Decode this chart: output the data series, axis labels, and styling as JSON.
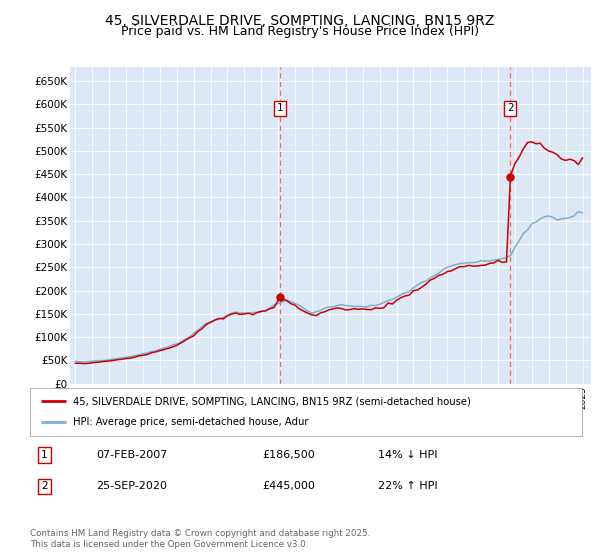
{
  "title": "45, SILVERDALE DRIVE, SOMPTING, LANCING, BN15 9RZ",
  "subtitle": "Price paid vs. HM Land Registry's House Price Index (HPI)",
  "title_fontsize": 10,
  "subtitle_fontsize": 9,
  "fig_bg_color": "#ffffff",
  "plot_bg_color": "#dce8f5",
  "legend1_label": "45, SILVERDALE DRIVE, SOMPTING, LANCING, BN15 9RZ (semi-detached house)",
  "legend2_label": "HPI: Average price, semi-detached house, Adur",
  "footer": "Contains HM Land Registry data © Crown copyright and database right 2025.\nThis data is licensed under the Open Government Licence v3.0.",
  "sale1_date": "07-FEB-2007",
  "sale1_price": "£186,500",
  "sale1_hpi": "14% ↓ HPI",
  "sale2_date": "25-SEP-2020",
  "sale2_price": "£445,000",
  "sale2_hpi": "22% ↑ HPI",
  "red_line_color": "#cc0000",
  "blue_line_color": "#7ab0d4",
  "vline_color": "#ff6666",
  "ylim": [
    0,
    680000
  ],
  "yticks": [
    0,
    50000,
    100000,
    150000,
    200000,
    250000,
    300000,
    350000,
    400000,
    450000,
    500000,
    550000,
    600000,
    650000
  ],
  "sale1_year": 2007.1,
  "sale2_year": 2020.73,
  "sale1_price_val": 186500,
  "sale2_price_val": 445000,
  "hpi_data": [
    [
      1995.0,
      47500
    ],
    [
      1995.25,
      47200
    ],
    [
      1995.5,
      47000
    ],
    [
      1995.75,
      47300
    ],
    [
      1996.0,
      48500
    ],
    [
      1996.25,
      49000
    ],
    [
      1996.5,
      49500
    ],
    [
      1996.75,
      50000
    ],
    [
      1997.0,
      51000
    ],
    [
      1997.25,
      52500
    ],
    [
      1997.5,
      54000
    ],
    [
      1997.75,
      55000
    ],
    [
      1998.0,
      56500
    ],
    [
      1998.25,
      58000
    ],
    [
      1998.5,
      60000
    ],
    [
      1998.75,
      62000
    ],
    [
      1999.0,
      64000
    ],
    [
      1999.25,
      66000
    ],
    [
      1999.5,
      68500
    ],
    [
      1999.75,
      71000
    ],
    [
      2000.0,
      73000
    ],
    [
      2000.25,
      76000
    ],
    [
      2000.5,
      79000
    ],
    [
      2000.75,
      82000
    ],
    [
      2001.0,
      85000
    ],
    [
      2001.25,
      90000
    ],
    [
      2001.5,
      96000
    ],
    [
      2001.75,
      101000
    ],
    [
      2002.0,
      107000
    ],
    [
      2002.25,
      115000
    ],
    [
      2002.5,
      123000
    ],
    [
      2002.75,
      129000
    ],
    [
      2003.0,
      133000
    ],
    [
      2003.25,
      137000
    ],
    [
      2003.5,
      140000
    ],
    [
      2003.75,
      143000
    ],
    [
      2004.0,
      147000
    ],
    [
      2004.25,
      150000
    ],
    [
      2004.5,
      152000
    ],
    [
      2004.75,
      152000
    ],
    [
      2005.0,
      151000
    ],
    [
      2005.25,
      151000
    ],
    [
      2005.5,
      152000
    ],
    [
      2005.75,
      154000
    ],
    [
      2006.0,
      156000
    ],
    [
      2006.25,
      159000
    ],
    [
      2006.5,
      162000
    ],
    [
      2006.75,
      167000
    ],
    [
      2007.0,
      172000
    ],
    [
      2007.25,
      176000
    ],
    [
      2007.5,
      178000
    ],
    [
      2007.75,
      176000
    ],
    [
      2008.0,
      172000
    ],
    [
      2008.25,
      168000
    ],
    [
      2008.5,
      162000
    ],
    [
      2008.75,
      156000
    ],
    [
      2009.0,
      153000
    ],
    [
      2009.25,
      154000
    ],
    [
      2009.5,
      157000
    ],
    [
      2009.75,
      161000
    ],
    [
      2010.0,
      165000
    ],
    [
      2010.25,
      167000
    ],
    [
      2010.5,
      168000
    ],
    [
      2010.75,
      168000
    ],
    [
      2011.0,
      168000
    ],
    [
      2011.25,
      168000
    ],
    [
      2011.5,
      167000
    ],
    [
      2011.75,
      167000
    ],
    [
      2012.0,
      166000
    ],
    [
      2012.25,
      166000
    ],
    [
      2012.5,
      167000
    ],
    [
      2012.75,
      168000
    ],
    [
      2013.0,
      170000
    ],
    [
      2013.25,
      173000
    ],
    [
      2013.5,
      177000
    ],
    [
      2013.75,
      181000
    ],
    [
      2014.0,
      185000
    ],
    [
      2014.25,
      190000
    ],
    [
      2014.5,
      195000
    ],
    [
      2014.75,
      200000
    ],
    [
      2015.0,
      205000
    ],
    [
      2015.25,
      211000
    ],
    [
      2015.5,
      217000
    ],
    [
      2015.75,
      222000
    ],
    [
      2016.0,
      228000
    ],
    [
      2016.25,
      233000
    ],
    [
      2016.5,
      238000
    ],
    [
      2016.75,
      243000
    ],
    [
      2017.0,
      248000
    ],
    [
      2017.25,
      252000
    ],
    [
      2017.5,
      255000
    ],
    [
      2017.75,
      257000
    ],
    [
      2018.0,
      259000
    ],
    [
      2018.25,
      260000
    ],
    [
      2018.5,
      261000
    ],
    [
      2018.75,
      261000
    ],
    [
      2019.0,
      261000
    ],
    [
      2019.25,
      262000
    ],
    [
      2019.5,
      264000
    ],
    [
      2019.75,
      266000
    ],
    [
      2020.0,
      268000
    ],
    [
      2020.25,
      268000
    ],
    [
      2020.5,
      270000
    ],
    [
      2020.75,
      278000
    ],
    [
      2021.0,
      292000
    ],
    [
      2021.25,
      308000
    ],
    [
      2021.5,
      320000
    ],
    [
      2021.75,
      330000
    ],
    [
      2022.0,
      340000
    ],
    [
      2022.25,
      348000
    ],
    [
      2022.5,
      355000
    ],
    [
      2022.75,
      358000
    ],
    [
      2023.0,
      358000
    ],
    [
      2023.25,
      356000
    ],
    [
      2023.5,
      354000
    ],
    [
      2023.75,
      354000
    ],
    [
      2024.0,
      355000
    ],
    [
      2024.25,
      358000
    ],
    [
      2024.5,
      362000
    ],
    [
      2024.75,
      366000
    ],
    [
      2025.0,
      368000
    ]
  ],
  "prop_data": [
    [
      1995.0,
      44000
    ],
    [
      1995.25,
      43500
    ],
    [
      1995.5,
      43000
    ],
    [
      1995.75,
      43500
    ],
    [
      1996.0,
      44500
    ],
    [
      1996.25,
      45500
    ],
    [
      1996.5,
      46500
    ],
    [
      1996.75,
      47500
    ],
    [
      1997.0,
      48500
    ],
    [
      1997.25,
      50000
    ],
    [
      1997.5,
      51500
    ],
    [
      1997.75,
      52500
    ],
    [
      1998.0,
      54000
    ],
    [
      1998.25,
      55500
    ],
    [
      1998.5,
      57500
    ],
    [
      1998.75,
      59500
    ],
    [
      1999.0,
      61500
    ],
    [
      1999.25,
      63500
    ],
    [
      1999.5,
      66000
    ],
    [
      1999.75,
      68500
    ],
    [
      2000.0,
      70500
    ],
    [
      2000.25,
      73500
    ],
    [
      2000.5,
      76500
    ],
    [
      2000.75,
      79500
    ],
    [
      2001.0,
      82500
    ],
    [
      2001.25,
      87500
    ],
    [
      2001.5,
      93500
    ],
    [
      2001.75,
      98500
    ],
    [
      2002.0,
      104000
    ],
    [
      2002.25,
      112000
    ],
    [
      2002.5,
      120000
    ],
    [
      2002.75,
      127000
    ],
    [
      2003.0,
      131000
    ],
    [
      2003.25,
      135000
    ],
    [
      2003.5,
      138000
    ],
    [
      2003.75,
      141000
    ],
    [
      2004.0,
      145000
    ],
    [
      2004.25,
      148000
    ],
    [
      2004.5,
      150000
    ],
    [
      2004.75,
      150000
    ],
    [
      2005.0,
      149000
    ],
    [
      2005.25,
      149000
    ],
    [
      2005.5,
      150000
    ],
    [
      2005.75,
      152000
    ],
    [
      2006.0,
      154000
    ],
    [
      2006.25,
      157000
    ],
    [
      2006.5,
      160000
    ],
    [
      2006.75,
      165000
    ],
    [
      2007.1,
      186500
    ],
    [
      2007.25,
      183000
    ],
    [
      2007.5,
      178000
    ],
    [
      2007.75,
      172000
    ],
    [
      2008.0,
      167000
    ],
    [
      2008.25,
      162000
    ],
    [
      2008.5,
      156000
    ],
    [
      2008.75,
      150000
    ],
    [
      2009.0,
      147000
    ],
    [
      2009.25,
      148000
    ],
    [
      2009.5,
      151000
    ],
    [
      2009.75,
      155000
    ],
    [
      2010.0,
      158000
    ],
    [
      2010.25,
      160000
    ],
    [
      2010.5,
      161000
    ],
    [
      2010.75,
      161000
    ],
    [
      2011.0,
      161000
    ],
    [
      2011.25,
      161000
    ],
    [
      2011.5,
      160000
    ],
    [
      2011.75,
      160000
    ],
    [
      2012.0,
      159000
    ],
    [
      2012.25,
      159000
    ],
    [
      2012.5,
      160000
    ],
    [
      2012.75,
      161000
    ],
    [
      2013.0,
      163000
    ],
    [
      2013.25,
      166000
    ],
    [
      2013.5,
      170000
    ],
    [
      2013.75,
      174000
    ],
    [
      2014.0,
      178000
    ],
    [
      2014.25,
      183000
    ],
    [
      2014.5,
      188000
    ],
    [
      2014.75,
      193000
    ],
    [
      2015.0,
      198000
    ],
    [
      2015.25,
      204000
    ],
    [
      2015.5,
      210000
    ],
    [
      2015.75,
      215000
    ],
    [
      2016.0,
      221000
    ],
    [
      2016.25,
      226000
    ],
    [
      2016.5,
      231000
    ],
    [
      2016.75,
      236000
    ],
    [
      2017.0,
      241000
    ],
    [
      2017.25,
      245000
    ],
    [
      2017.5,
      248000
    ],
    [
      2017.75,
      250000
    ],
    [
      2018.0,
      252000
    ],
    [
      2018.25,
      253000
    ],
    [
      2018.5,
      254000
    ],
    [
      2018.75,
      254000
    ],
    [
      2019.0,
      254000
    ],
    [
      2019.25,
      255000
    ],
    [
      2019.5,
      257000
    ],
    [
      2019.75,
      259000
    ],
    [
      2020.0,
      261000
    ],
    [
      2020.25,
      261000
    ],
    [
      2020.5,
      262000
    ],
    [
      2020.73,
      445000
    ],
    [
      2020.75,
      448000
    ],
    [
      2021.0,
      470000
    ],
    [
      2021.25,
      490000
    ],
    [
      2021.5,
      505000
    ],
    [
      2021.75,
      515000
    ],
    [
      2022.0,
      520000
    ],
    [
      2022.25,
      518000
    ],
    [
      2022.5,
      512000
    ],
    [
      2022.75,
      505000
    ],
    [
      2023.0,
      498000
    ],
    [
      2023.25,
      492000
    ],
    [
      2023.5,
      487000
    ],
    [
      2023.75,
      484000
    ],
    [
      2024.0,
      482000
    ],
    [
      2024.25,
      481000
    ],
    [
      2024.5,
      480000
    ],
    [
      2024.75,
      479000
    ],
    [
      2025.0,
      480000
    ]
  ]
}
